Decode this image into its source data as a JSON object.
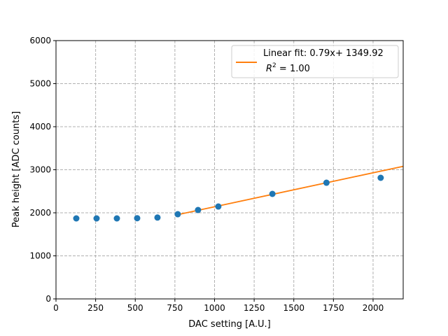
{
  "chart_data": {
    "type": "scatter",
    "title": "",
    "xlabel": "DAC setting [A.U.]",
    "ylabel": "Peak height [ADC counts]",
    "xlim": [
      0,
      2190
    ],
    "ylim": [
      0,
      6000
    ],
    "xticks": [
      0,
      250,
      500,
      750,
      1000,
      1250,
      1500,
      1750,
      2000
    ],
    "yticks": [
      0,
      1000,
      2000,
      3000,
      4000,
      5000,
      6000
    ],
    "grid": true,
    "legend_position": "top-right",
    "points": {
      "color": "#1f77b4",
      "x": [
        128,
        256,
        384,
        512,
        640,
        768,
        896,
        1024,
        1365,
        1706,
        2048
      ],
      "y": [
        1870,
        1870,
        1870,
        1875,
        1890,
        1967,
        2065,
        2146,
        2439,
        2699,
        2813
      ]
    },
    "fit": {
      "color": "#ff7f0e",
      "slope": 0.79,
      "intercept": 1349.92,
      "x_start": 768,
      "legend_line1": "Linear fit: 0.79x+ 1349.92",
      "legend_r2_symbol": "R",
      "legend_r2_exp": "2",
      "legend_r2_value": " = 1.00"
    }
  }
}
